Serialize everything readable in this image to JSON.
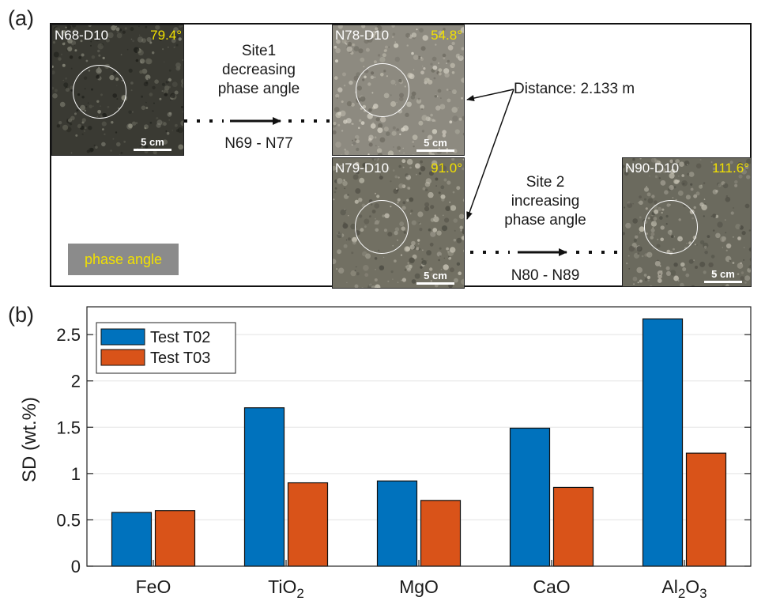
{
  "panel_a": {
    "label": "(a)",
    "photos": [
      {
        "id": "N68",
        "title": "N68-D10",
        "angle": "79.4°",
        "scale": "5 cm",
        "tone": "dark"
      },
      {
        "id": "N78",
        "title": "N78-D10",
        "angle": "54.8°",
        "scale": "5 cm",
        "tone": "light"
      },
      {
        "id": "N79",
        "title": "N79-D10",
        "angle": "91.0°",
        "scale": "5 cm",
        "tone": "mid"
      },
      {
        "id": "N90",
        "title": "N90-D10",
        "angle": "111.6°",
        "scale": "5 cm",
        "tone": "mid"
      }
    ],
    "site1": {
      "line1": "Site1",
      "line2": "decreasing",
      "line3": "phase angle",
      "range": "N69 - N77"
    },
    "site2": {
      "line1": "Site 2",
      "line2": "increasing",
      "line3": "phase angle",
      "range": "N80 - N89"
    },
    "distance": "Distance: 2.133 m",
    "legend_label": "phase angle",
    "colors": {
      "angle_text": "#f2e100",
      "legend_bg": "#8b8b8b"
    }
  },
  "chart_data": {
    "panel_label": "(b)",
    "type": "bar",
    "categories": [
      "FeO",
      "TiO2",
      "MgO",
      "CaO",
      "Al2O3"
    ],
    "category_labels": [
      {
        "parts": [
          {
            "t": "FeO",
            "sub": false
          }
        ]
      },
      {
        "parts": [
          {
            "t": "TiO",
            "sub": false
          },
          {
            "t": "2",
            "sub": true
          }
        ]
      },
      {
        "parts": [
          {
            "t": "MgO",
            "sub": false
          }
        ]
      },
      {
        "parts": [
          {
            "t": "CaO",
            "sub": false
          }
        ]
      },
      {
        "parts": [
          {
            "t": "Al",
            "sub": false
          },
          {
            "t": "2",
            "sub": true
          },
          {
            "t": "O",
            "sub": false
          },
          {
            "t": "3",
            "sub": true
          }
        ]
      }
    ],
    "series": [
      {
        "name": "Test T02",
        "color": "#0072bd",
        "values": [
          0.58,
          1.71,
          0.92,
          1.49,
          2.67
        ]
      },
      {
        "name": "Test T03",
        "color": "#d95319",
        "values": [
          0.6,
          0.9,
          0.71,
          0.85,
          1.22
        ]
      }
    ],
    "ylabel": "SD (wt.%)",
    "xlabel": "",
    "ylim": [
      0,
      2.8
    ],
    "yticks": [
      0,
      0.5,
      1,
      1.5,
      2,
      2.5
    ],
    "ytick_labels": [
      "0",
      "0.5",
      "1",
      "1.5",
      "2",
      "2.5"
    ],
    "grid": "horizontal",
    "legend_position": "top-left"
  }
}
